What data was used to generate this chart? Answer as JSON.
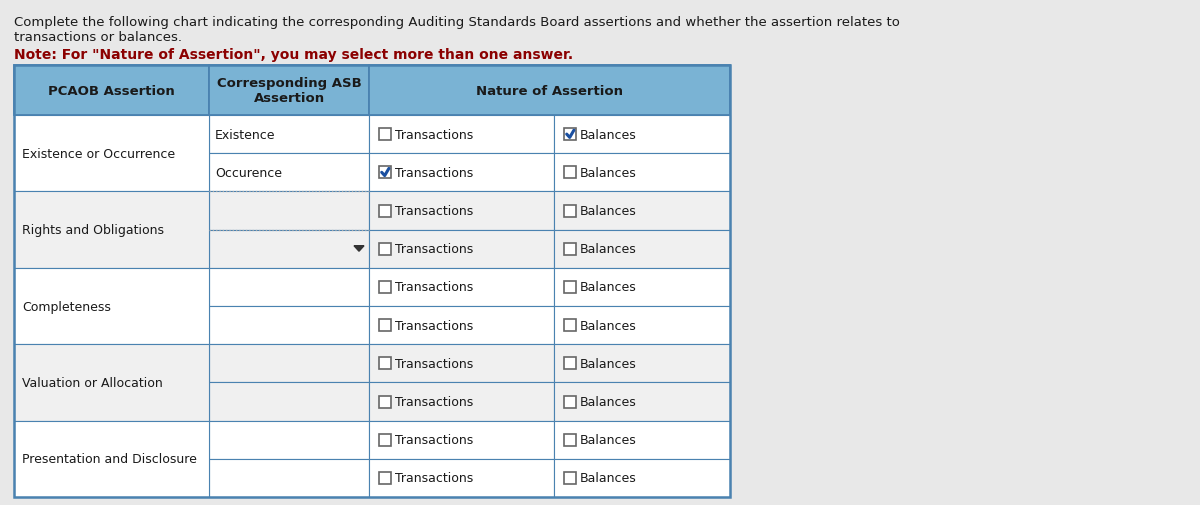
{
  "title_line1": "Complete the following chart indicating the corresponding Auditing Standards Board assertions and whether the assertion relates to",
  "title_line2": "transactions or balances.",
  "title_note": "Note: For \"Nature of Assertion\", you may select more than one answer.",
  "header_bg": "#7ab3d4",
  "header_bg2": "#5a9ec8",
  "bg_color": "#e8e8e8",
  "table_bg_white": "#ffffff",
  "table_bg_light": "#f0f0f0",
  "border_color": "#4a82b0",
  "note_color": "#8B0000",
  "asb_assertions": [
    "Existence",
    "Occurence",
    "",
    "",
    "",
    "",
    "",
    "",
    "",
    ""
  ],
  "transactions_checked": [
    false,
    true,
    false,
    false,
    false,
    false,
    false,
    false,
    false,
    false
  ],
  "balances_checked": [
    true,
    false,
    false,
    false,
    false,
    false,
    false,
    false,
    false,
    false
  ],
  "pcaob_labels": [
    "Existence or Occurrence",
    "Rights and Obligations",
    "Completeness",
    "Valuation or Allocation",
    "Presentation and Disclosure"
  ],
  "check_color": "#1a4fa0",
  "dropdown_row": 3
}
